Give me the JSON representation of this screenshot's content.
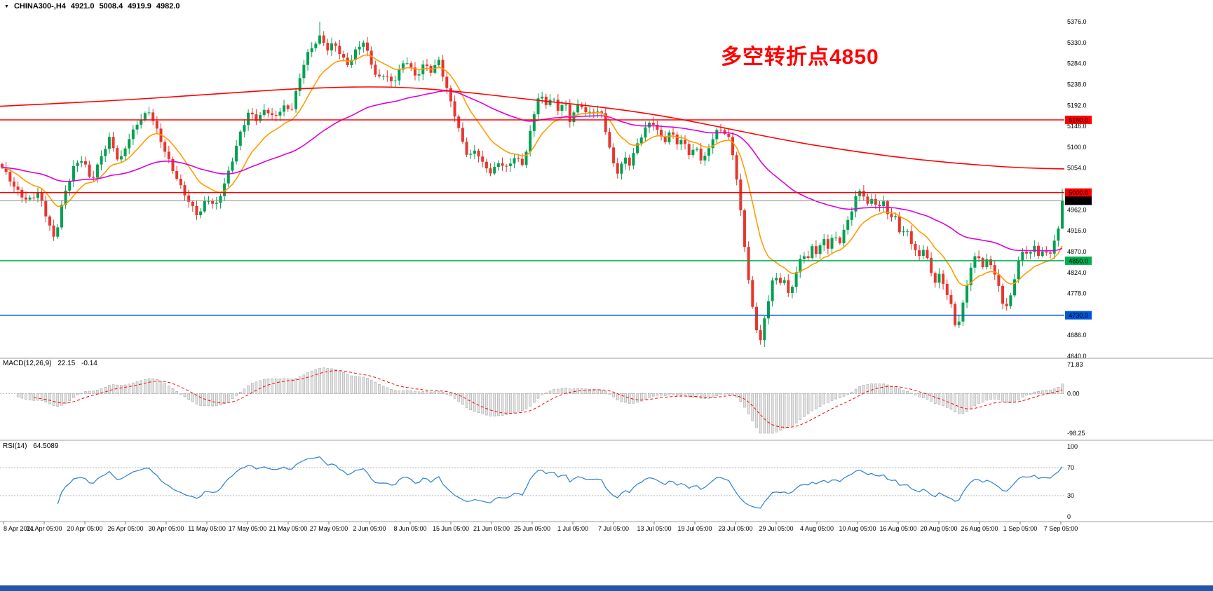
{
  "quote_bar": {
    "symbol": "CHINA300-,H4",
    "open": "4921.0",
    "high": "5008.4",
    "low": "4919.9",
    "close": "4982.0"
  },
  "annotation": {
    "text": "多空转折点4850",
    "color": "#ff0000"
  },
  "taskbar_color": "#2456a8",
  "chart_data": {
    "type": "candlestick",
    "symbol": "CHINA300-",
    "timeframe": "H4",
    "title": "CHINA300-,H4 4921.0 5008.4 4919.9 4982.0",
    "ohlc_last": {
      "open": 4921.0,
      "high": 5008.4,
      "low": 4919.9,
      "close": 4982.0
    },
    "y_axis": {
      "min": 4640.0,
      "max": 5376.0,
      "tick_step": 46.0
    },
    "x_axis_labels": [
      "8 Apr 2021",
      "14 Apr 05:00",
      "20 Apr 05:00",
      "26 Apr 05:00",
      "30 Apr 05:00",
      "11 May 05:00",
      "17 May 05:00",
      "21 May 05:00",
      "27 May 05:00",
      "2 Jun 05:00",
      "8 Jun 05:00",
      "15 Jun 05:00",
      "21 Jun 05:00",
      "25 Jun 05:00",
      "1 Jul 05:00",
      "7 Jul 05:00",
      "13 Jul 05:00",
      "19 Jul 05:00",
      "23 Jul 05:00",
      "29 Jul 05:00",
      "4 Aug 05:00",
      "10 Aug 05:00",
      "16 Aug 05:00",
      "20 Aug 05:00",
      "26 Aug 05:00",
      "1 Sep 05:00",
      "7 Sep 05:00"
    ],
    "levels": [
      {
        "price": 5160.0,
        "label": "5160.0",
        "color": "#ff0000"
      },
      {
        "price": 5000.0,
        "label": "5000.0",
        "color": "#ff0000"
      },
      {
        "price": 4850.0,
        "label": "4850.0",
        "color": "#00b050"
      },
      {
        "price": 4730.0,
        "label": "4730.0",
        "color": "#0057d8"
      }
    ],
    "current_price": {
      "value": 4982.0,
      "label": "4982.0",
      "box_color": "#000000",
      "line_color": "#8a8a8a"
    },
    "candles": {
      "count": 268,
      "up_color": "#00a050",
      "down_color": "#e8352e",
      "extreme_high": 5376.0,
      "extreme_low": 4660.0
    },
    "close_path": [
      [
        3,
        5055
      ],
      [
        20,
        5010
      ],
      [
        38,
        4985
      ],
      [
        55,
        5000
      ],
      [
        68,
        4935
      ],
      [
        78,
        4895
      ],
      [
        90,
        4990
      ],
      [
        105,
        5055
      ],
      [
        118,
        5072
      ],
      [
        130,
        5025
      ],
      [
        143,
        5078
      ],
      [
        156,
        5118
      ],
      [
        170,
        5062
      ],
      [
        184,
        5122
      ],
      [
        198,
        5160
      ],
      [
        213,
        5176
      ],
      [
        228,
        5120
      ],
      [
        243,
        5065
      ],
      [
        258,
        5010
      ],
      [
        270,
        4975
      ],
      [
        283,
        4950
      ],
      [
        295,
        4992
      ],
      [
        307,
        4966
      ],
      [
        318,
        5006
      ],
      [
        330,
        5066
      ],
      [
        343,
        5136
      ],
      [
        355,
        5176
      ],
      [
        367,
        5156
      ],
      [
        379,
        5186
      ],
      [
        391,
        5166
      ],
      [
        403,
        5190
      ],
      [
        415,
        5176
      ],
      [
        426,
        5242
      ],
      [
        436,
        5302
      ],
      [
        447,
        5326
      ],
      [
        457,
        5342
      ],
      [
        467,
        5312
      ],
      [
        477,
        5330
      ],
      [
        487,
        5302
      ],
      [
        497,
        5282
      ],
      [
        508,
        5312
      ],
      [
        518,
        5330
      ],
      [
        528,
        5292
      ],
      [
        538,
        5252
      ],
      [
        549,
        5264
      ],
      [
        560,
        5234
      ],
      [
        571,
        5274
      ],
      [
        582,
        5292
      ],
      [
        593,
        5254
      ],
      [
        604,
        5282
      ],
      [
        615,
        5264
      ],
      [
        626,
        5290
      ],
      [
        637,
        5232
      ],
      [
        648,
        5176
      ],
      [
        658,
        5116
      ],
      [
        668,
        5074
      ],
      [
        679,
        5096
      ],
      [
        690,
        5062
      ],
      [
        701,
        5044
      ],
      [
        712,
        5064
      ],
      [
        723,
        5052
      ],
      [
        734,
        5082
      ],
      [
        745,
        5064
      ],
      [
        753,
        5106
      ],
      [
        761,
        5166
      ],
      [
        769,
        5216
      ],
      [
        778,
        5194
      ],
      [
        787,
        5214
      ],
      [
        796,
        5184
      ],
      [
        805,
        5200
      ],
      [
        813,
        5154
      ],
      [
        821,
        5184
      ],
      [
        829,
        5194
      ],
      [
        838,
        5174
      ],
      [
        848,
        5184
      ],
      [
        858,
        5170
      ],
      [
        866,
        5120
      ],
      [
        874,
        5064
      ],
      [
        882,
        5044
      ],
      [
        890,
        5082
      ],
      [
        898,
        5064
      ],
      [
        906,
        5094
      ],
      [
        914,
        5120
      ],
      [
        922,
        5144
      ],
      [
        930,
        5160
      ],
      [
        939,
        5134
      ],
      [
        948,
        5114
      ],
      [
        957,
        5134
      ],
      [
        966,
        5106
      ],
      [
        975,
        5114
      ],
      [
        984,
        5084
      ],
      [
        993,
        5104
      ],
      [
        1002,
        5064
      ],
      [
        1011,
        5096
      ],
      [
        1020,
        5130
      ],
      [
        1030,
        5142
      ],
      [
        1040,
        5120
      ],
      [
        1048,
        5066
      ],
      [
        1054,
        4986
      ],
      [
        1060,
        4906
      ],
      [
        1066,
        4826
      ],
      [
        1072,
        4754
      ],
      [
        1078,
        4706
      ],
      [
        1084,
        4674
      ],
      [
        1090,
        4720
      ],
      [
        1097,
        4774
      ],
      [
        1104,
        4824
      ],
      [
        1110,
        4792
      ],
      [
        1117,
        4814
      ],
      [
        1124,
        4774
      ],
      [
        1131,
        4802
      ],
      [
        1138,
        4840
      ],
      [
        1145,
        4870
      ],
      [
        1152,
        4852
      ],
      [
        1159,
        4880
      ],
      [
        1166,
        4860
      ],
      [
        1173,
        4900
      ],
      [
        1181,
        4882
      ],
      [
        1189,
        4910
      ],
      [
        1197,
        4890
      ],
      [
        1205,
        4920
      ],
      [
        1213,
        4950
      ],
      [
        1221,
        4990
      ],
      [
        1229,
        5010
      ],
      [
        1237,
        4974
      ],
      [
        1245,
        4992
      ],
      [
        1253,
        4962
      ],
      [
        1261,
        4980
      ],
      [
        1269,
        4936
      ],
      [
        1277,
        4950
      ],
      [
        1285,
        4906
      ],
      [
        1293,
        4924
      ],
      [
        1301,
        4884
      ],
      [
        1309,
        4854
      ],
      [
        1317,
        4874
      ],
      [
        1325,
        4840
      ],
      [
        1333,
        4804
      ],
      [
        1341,
        4824
      ],
      [
        1349,
        4784
      ],
      [
        1357,
        4746
      ],
      [
        1364,
        4694
      ],
      [
        1371,
        4732
      ],
      [
        1378,
        4794
      ],
      [
        1386,
        4846
      ],
      [
        1394,
        4870
      ],
      [
        1402,
        4834
      ],
      [
        1410,
        4854
      ],
      [
        1418,
        4820
      ],
      [
        1426,
        4784
      ],
      [
        1433,
        4744
      ],
      [
        1440,
        4764
      ],
      [
        1447,
        4814
      ],
      [
        1454,
        4854
      ],
      [
        1461,
        4872
      ],
      [
        1468,
        4860
      ],
      [
        1475,
        4882
      ],
      [
        1482,
        4864
      ],
      [
        1489,
        4874
      ],
      [
        1496,
        4864
      ],
      [
        1503,
        4886
      ],
      [
        1509,
        4921
      ],
      [
        1515,
        4982
      ]
    ],
    "moving_averages": [
      {
        "name": "fast-ma",
        "color": "#ff9d00",
        "type": "ema",
        "period": 13
      },
      {
        "name": "medium-ma",
        "color": "#dd00dd",
        "type": "ema",
        "period": 64
      },
      {
        "name": "slow-ma",
        "color": "#ff0000",
        "type": "path",
        "points": [
          [
            0,
            5190
          ],
          [
            140,
            5200
          ],
          [
            300,
            5216
          ],
          [
            430,
            5230
          ],
          [
            560,
            5234
          ],
          [
            660,
            5222
          ],
          [
            760,
            5204
          ],
          [
            860,
            5188
          ],
          [
            950,
            5168
          ],
          [
            1040,
            5140
          ],
          [
            1130,
            5112
          ],
          [
            1220,
            5090
          ],
          [
            1310,
            5072
          ],
          [
            1400,
            5060
          ],
          [
            1460,
            5054
          ],
          [
            1518,
            5052
          ]
        ]
      }
    ],
    "macd": {
      "label": "MACD(12,26,9)",
      "value_main": "22.15",
      "value_signal": "-0.14",
      "params": {
        "fast": 12,
        "slow": 26,
        "signal": 9
      },
      "y_max": 71.83,
      "y_min": -98.25,
      "y_ticks": [
        71.83,
        0,
        -98.25
      ],
      "histogram_fill": "#e3e3e3",
      "histogram_stroke": "#9a9a9a",
      "signal_color": "#ff0000"
    },
    "rsi": {
      "label": "RSI(14)",
      "value": "64.5089",
      "period": 14,
      "levels": [
        70,
        30
      ],
      "y_ticks": [
        100,
        70,
        30,
        0
      ],
      "line_color": "#2a7fd4",
      "level_color": "#b5b5b5"
    }
  }
}
